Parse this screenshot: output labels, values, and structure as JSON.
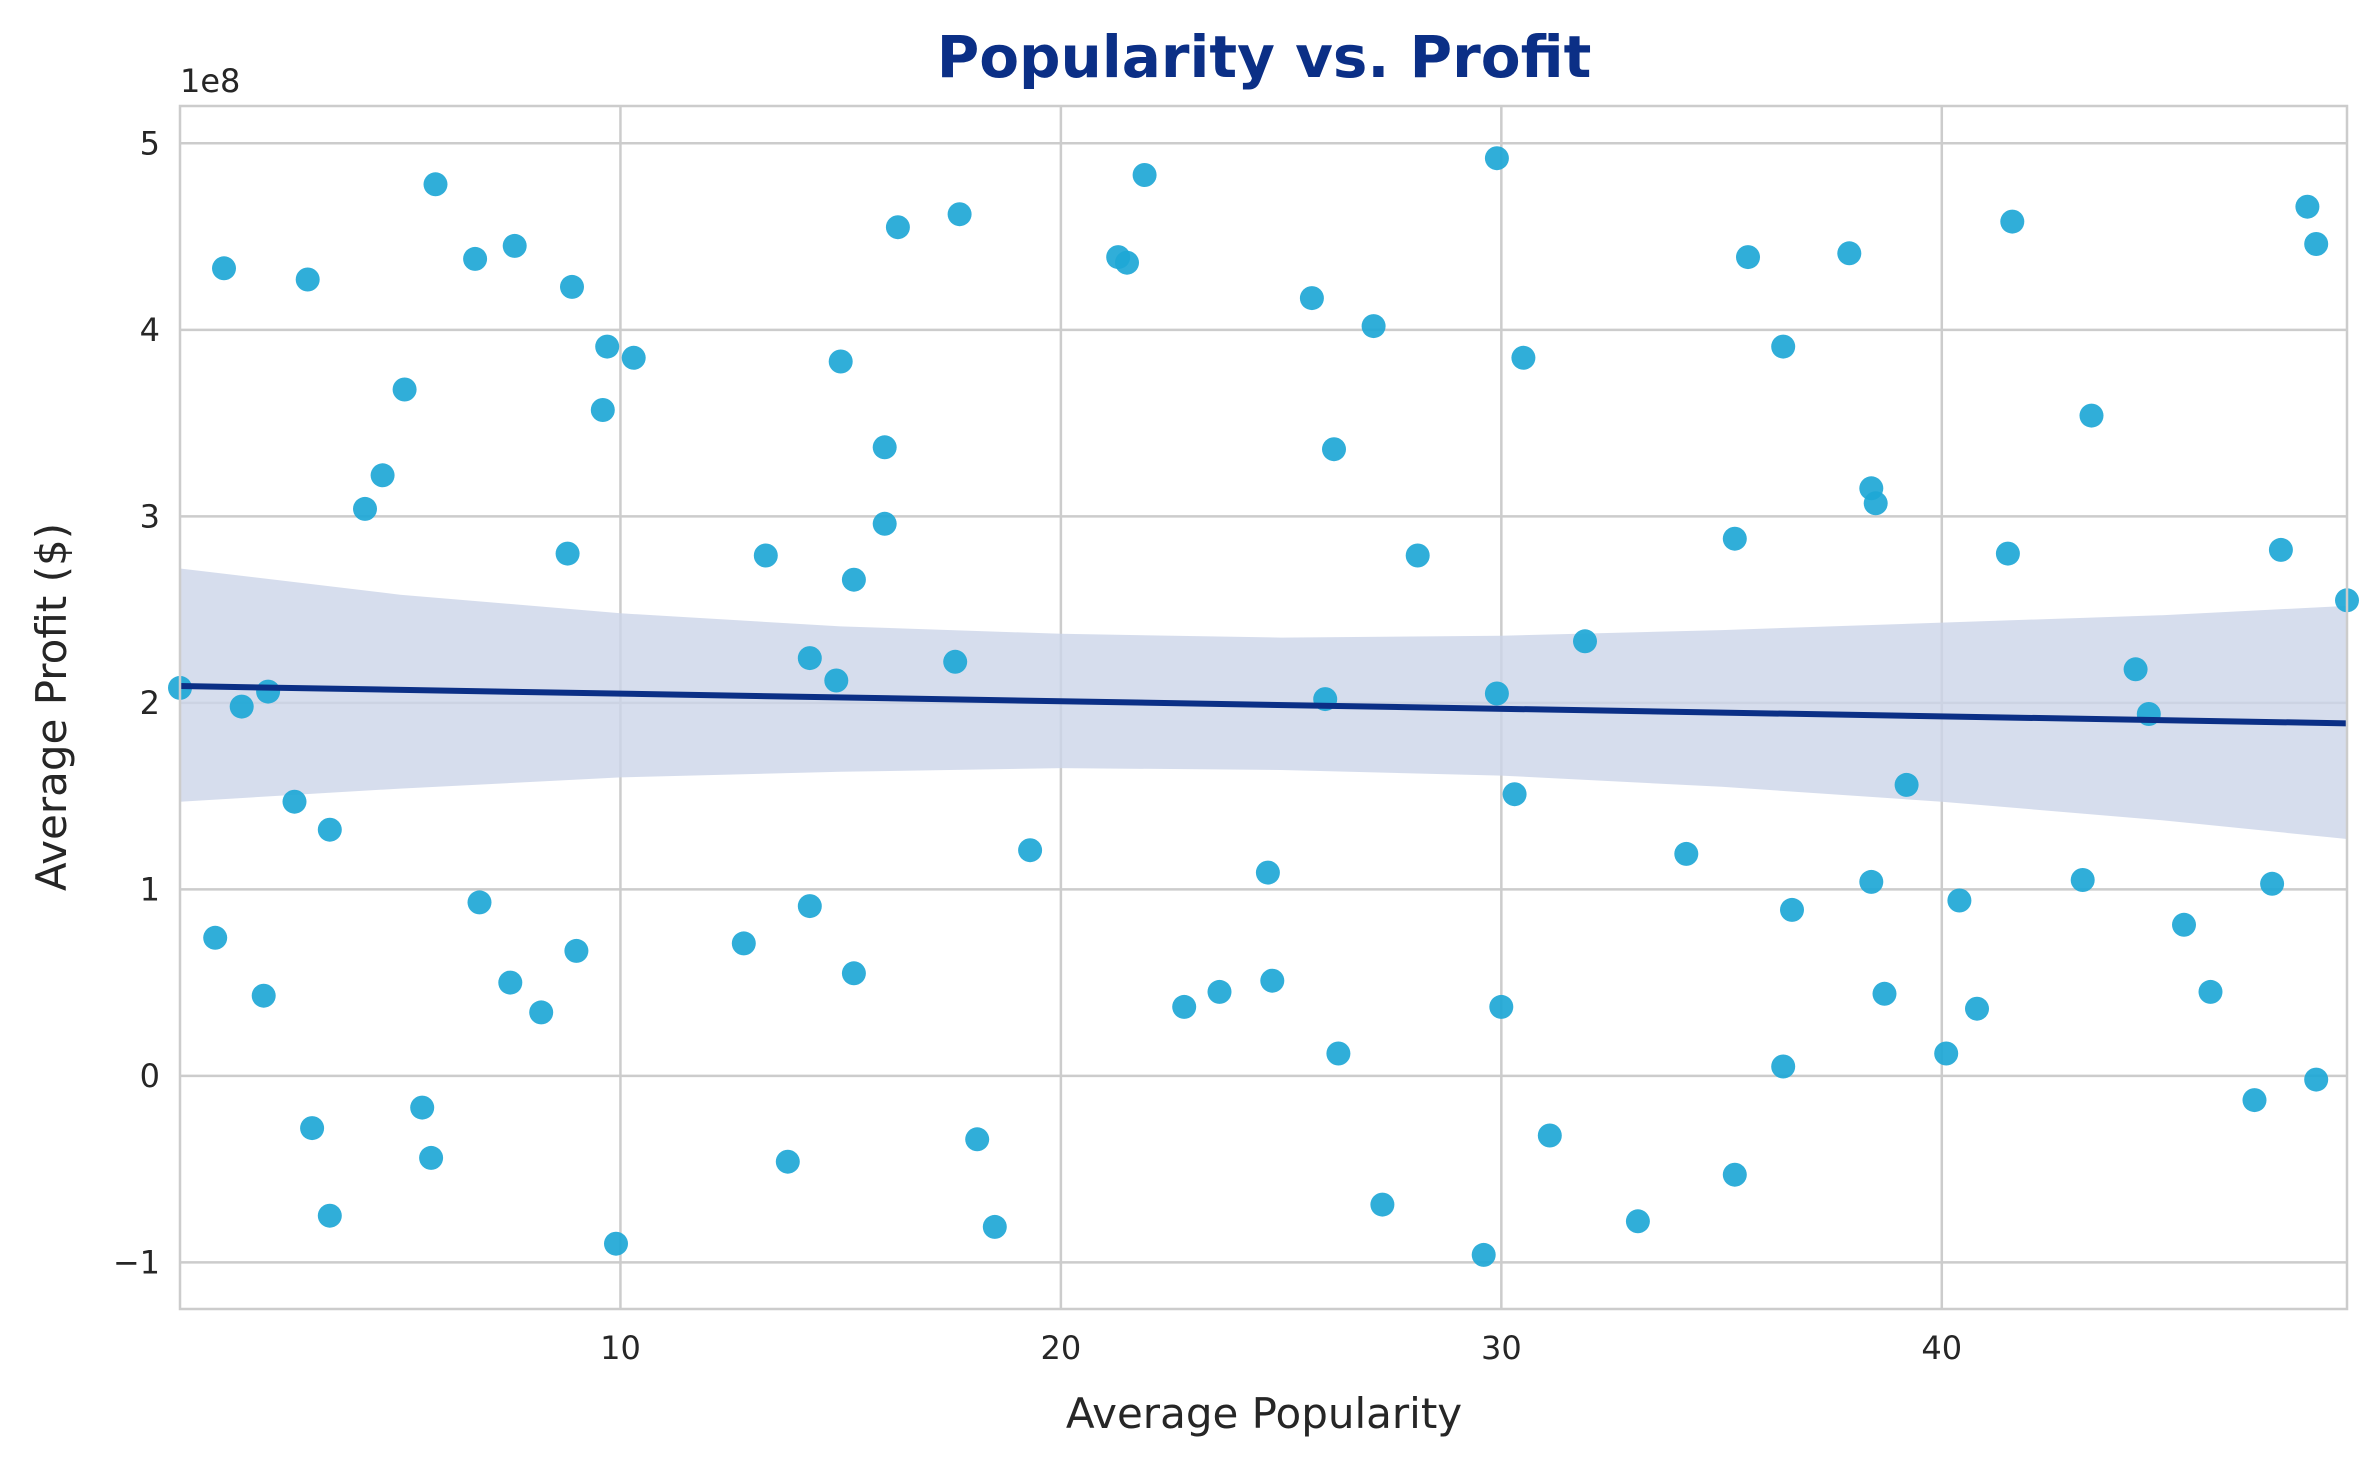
{
  "chart_data": {
    "type": "scatter",
    "title": "Popularity vs. Profit",
    "xlabel": "Average Popularity",
    "ylabel": "Average Profit ($)",
    "y_offset_label": "1e8",
    "xlim": [
      0.0,
      49.2
    ],
    "ylim": [
      -1.25,
      5.2
    ],
    "x_ticks": [
      10,
      20,
      30,
      40
    ],
    "x_tick_labels": [
      "10",
      "20",
      "30",
      "40"
    ],
    "y_ticks": [
      -1,
      0,
      1,
      2,
      3,
      4,
      5
    ],
    "y_tick_labels": [
      "−1",
      "0",
      "1",
      "2",
      "3",
      "4",
      "5"
    ],
    "grid": true,
    "colors": {
      "points": "#1ea7d6",
      "regression_line": "#0b2f86",
      "confidence_band": "#ccd5e8",
      "title": "#0b2f86",
      "grid": "#cccccc",
      "text": "#262626"
    },
    "points": [
      {
        "x": 0.0,
        "y": 2.08
      },
      {
        "x": 0.8,
        "y": 0.74
      },
      {
        "x": 1.0,
        "y": 4.33
      },
      {
        "x": 1.4,
        "y": 1.98
      },
      {
        "x": 1.9,
        "y": 0.43
      },
      {
        "x": 2.0,
        "y": 2.06
      },
      {
        "x": 2.6,
        "y": 1.47
      },
      {
        "x": 2.9,
        "y": 4.27
      },
      {
        "x": 3.0,
        "y": -0.28
      },
      {
        "x": 3.4,
        "y": 1.32
      },
      {
        "x": 3.4,
        "y": -0.75
      },
      {
        "x": 4.2,
        "y": 3.04
      },
      {
        "x": 4.6,
        "y": 3.22
      },
      {
        "x": 5.1,
        "y": 3.68
      },
      {
        "x": 5.5,
        "y": -0.17
      },
      {
        "x": 5.7,
        "y": -0.44
      },
      {
        "x": 5.8,
        "y": 4.78
      },
      {
        "x": 6.7,
        "y": 4.38
      },
      {
        "x": 6.8,
        "y": 0.93
      },
      {
        "x": 7.5,
        "y": 0.5
      },
      {
        "x": 7.6,
        "y": 4.45
      },
      {
        "x": 8.2,
        "y": 0.34
      },
      {
        "x": 8.8,
        "y": 2.8
      },
      {
        "x": 8.9,
        "y": 4.23
      },
      {
        "x": 9.0,
        "y": 0.67
      },
      {
        "x": 9.6,
        "y": 3.57
      },
      {
        "x": 9.7,
        "y": 3.91
      },
      {
        "x": 9.9,
        "y": -0.9
      },
      {
        "x": 10.3,
        "y": 3.85
      },
      {
        "x": 12.8,
        "y": 0.71
      },
      {
        "x": 13.3,
        "y": 2.79
      },
      {
        "x": 13.8,
        "y": -0.46
      },
      {
        "x": 14.3,
        "y": 2.24
      },
      {
        "x": 14.3,
        "y": 0.91
      },
      {
        "x": 14.9,
        "y": 2.12
      },
      {
        "x": 15.0,
        "y": 3.83
      },
      {
        "x": 15.3,
        "y": 2.66
      },
      {
        "x": 15.3,
        "y": 0.55
      },
      {
        "x": 16.0,
        "y": 3.37
      },
      {
        "x": 16.0,
        "y": 2.96
      },
      {
        "x": 16.3,
        "y": 4.55
      },
      {
        "x": 17.6,
        "y": 2.22
      },
      {
        "x": 17.7,
        "y": 4.62
      },
      {
        "x": 18.1,
        "y": -0.34
      },
      {
        "x": 18.5,
        "y": -0.81
      },
      {
        "x": 19.3,
        "y": 1.21
      },
      {
        "x": 21.3,
        "y": 4.39
      },
      {
        "x": 21.5,
        "y": 4.36
      },
      {
        "x": 21.9,
        "y": 4.83
      },
      {
        "x": 22.8,
        "y": 0.37
      },
      {
        "x": 23.6,
        "y": 0.45
      },
      {
        "x": 24.7,
        "y": 1.09
      },
      {
        "x": 24.8,
        "y": 0.51
      },
      {
        "x": 25.7,
        "y": 4.17
      },
      {
        "x": 26.0,
        "y": 2.02
      },
      {
        "x": 26.2,
        "y": 3.36
      },
      {
        "x": 26.3,
        "y": 0.12
      },
      {
        "x": 27.1,
        "y": 4.02
      },
      {
        "x": 27.3,
        "y": -0.69
      },
      {
        "x": 28.1,
        "y": 2.79
      },
      {
        "x": 29.6,
        "y": -0.96
      },
      {
        "x": 29.9,
        "y": 4.92
      },
      {
        "x": 29.9,
        "y": 2.05
      },
      {
        "x": 30.0,
        "y": 0.37
      },
      {
        "x": 30.3,
        "y": 1.51
      },
      {
        "x": 30.5,
        "y": 3.85
      },
      {
        "x": 31.1,
        "y": -0.32
      },
      {
        "x": 31.9,
        "y": 2.33
      },
      {
        "x": 33.1,
        "y": -0.78
      },
      {
        "x": 34.2,
        "y": 1.19
      },
      {
        "x": 35.3,
        "y": 2.88
      },
      {
        "x": 35.3,
        "y": -0.53
      },
      {
        "x": 35.6,
        "y": 4.39
      },
      {
        "x": 36.4,
        "y": 3.91
      },
      {
        "x": 36.4,
        "y": 0.05
      },
      {
        "x": 36.6,
        "y": 0.89
      },
      {
        "x": 37.9,
        "y": 4.41
      },
      {
        "x": 38.4,
        "y": 3.15
      },
      {
        "x": 38.5,
        "y": 3.07
      },
      {
        "x": 38.4,
        "y": 1.04
      },
      {
        "x": 38.7,
        "y": 0.44
      },
      {
        "x": 39.2,
        "y": 1.56
      },
      {
        "x": 40.1,
        "y": 0.12
      },
      {
        "x": 40.4,
        "y": 0.94
      },
      {
        "x": 40.8,
        "y": 0.36
      },
      {
        "x": 41.5,
        "y": 2.8
      },
      {
        "x": 41.6,
        "y": 4.58
      },
      {
        "x": 43.2,
        "y": 1.05
      },
      {
        "x": 43.4,
        "y": 3.54
      },
      {
        "x": 44.4,
        "y": 2.18
      },
      {
        "x": 44.7,
        "y": 1.94
      },
      {
        "x": 45.5,
        "y": 0.81
      },
      {
        "x": 46.1,
        "y": 0.45
      },
      {
        "x": 47.1,
        "y": -0.13
      },
      {
        "x": 47.5,
        "y": 1.03
      },
      {
        "x": 47.7,
        "y": 2.82
      },
      {
        "x": 48.3,
        "y": 4.66
      },
      {
        "x": 48.5,
        "y": 4.46
      },
      {
        "x": 48.5,
        "y": -0.02
      },
      {
        "x": 49.2,
        "y": 2.55
      }
    ],
    "regression_line": {
      "x": [
        0.0,
        49.2
      ],
      "y": [
        2.09,
        1.89
      ]
    },
    "confidence_band": {
      "x": [
        0,
        5,
        10,
        15,
        20,
        25,
        30,
        35,
        40,
        45,
        49.2
      ],
      "upper": [
        2.72,
        2.58,
        2.48,
        2.41,
        2.37,
        2.35,
        2.36,
        2.39,
        2.43,
        2.47,
        2.52
      ],
      "lower": [
        1.47,
        1.54,
        1.6,
        1.63,
        1.65,
        1.64,
        1.61,
        1.55,
        1.47,
        1.37,
        1.27
      ]
    }
  }
}
